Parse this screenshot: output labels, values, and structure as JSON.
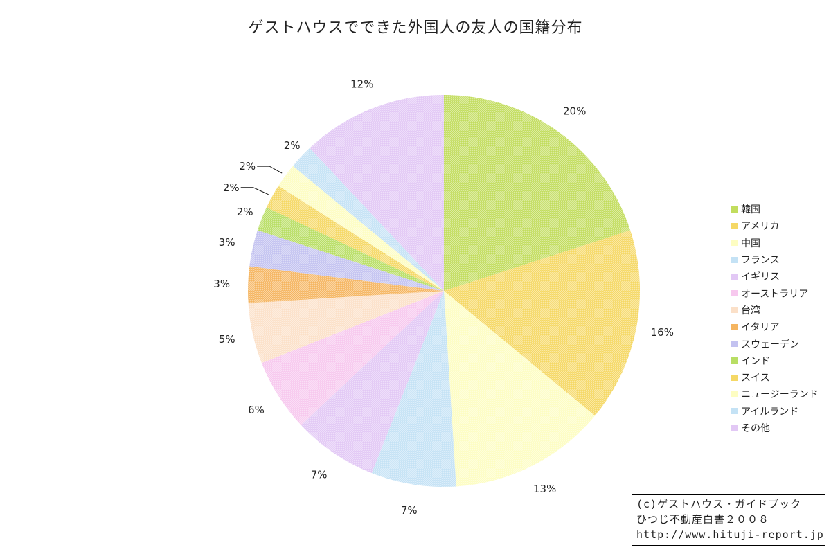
{
  "chart_data": {
    "type": "pie",
    "title": "ゲストハウスでできた外国人の友人の国籍分布",
    "categories": [
      "韓国",
      "アメリカ",
      "中国",
      "フランス",
      "イギリス",
      "オーストラリア",
      "台湾",
      "イタリア",
      "スウェーデン",
      "インド",
      "スイス",
      "ニュージーランド",
      "アイルランド",
      "その他"
    ],
    "values": [
      20,
      16,
      13,
      7,
      7,
      6,
      5,
      3,
      3,
      2,
      2,
      2,
      2,
      12
    ],
    "labels": [
      "20%",
      "16%",
      "13%",
      "7%",
      "7%",
      "6%",
      "5%",
      "3%",
      "3%",
      "2%",
      "2%",
      "2%",
      "2%",
      "12%"
    ],
    "colors": [
      "#c2dd5e",
      "#f5d865",
      "#fdfdc2",
      "#c4e2f5",
      "#e2c8f5",
      "#f7c8ee",
      "#fbe0c8",
      "#f5b560",
      "#c3c2f0",
      "#b8de64",
      "#f5d865",
      "#fdfdc2",
      "#c4e2f5",
      "#e2c8f5"
    ],
    "start_angle": "12 o'clock",
    "direction": "clockwise",
    "legend_position": "right"
  },
  "copyright": {
    "line1": "(c)ゲストハウス・ガイドブック",
    "line2": "ひつじ不動産白書２００８",
    "line3": "http://www.hituji-report.jp/"
  }
}
